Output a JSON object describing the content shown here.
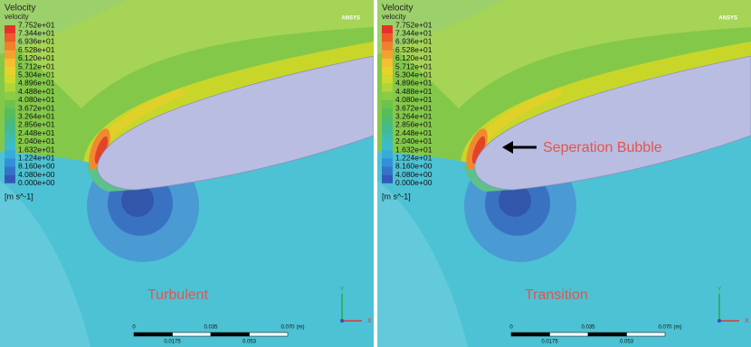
{
  "panels": [
    {
      "legend": {
        "title": "Velocity",
        "subtitle": "velocity",
        "levels": [
          "7.752e+01",
          "7.344e+01",
          "6.936e+01",
          "6.528e+01",
          "6.120e+01",
          "5.712e+01",
          "5.304e+01",
          "4.896e+01",
          "4.488e+01",
          "4.080e+01",
          "3.672e+01",
          "3.264e+01",
          "2.856e+01",
          "2.448e+01",
          "2.040e+01",
          "1.632e+01",
          "1.224e+01",
          "8.160e+00",
          "4.080e+00",
          "0.000e+00"
        ],
        "unit": "[m s^-1]"
      },
      "logo": "ANSYS",
      "label": "Turbulent",
      "scale": {
        "top": [
          "0",
          "0.035",
          "0.070",
          "(m)"
        ],
        "bottom": [
          "0.0175",
          "0.053"
        ]
      },
      "triad": {
        "y": "Y",
        "x": "X"
      }
    },
    {
      "legend": {
        "title": "Velocity",
        "subtitle": "velocity",
        "levels": [
          "7.752e+01",
          "7.344e+01",
          "6.936e+01",
          "6.528e+01",
          "6.120e+01",
          "5.712e+01",
          "5.304e+01",
          "4.896e+01",
          "4.488e+01",
          "4.080e+01",
          "3.672e+01",
          "3.264e+01",
          "2.856e+01",
          "2.448e+01",
          "2.040e+01",
          "1.632e+01",
          "1.224e+01",
          "8.160e+00",
          "4.080e+00",
          "0.000e+00"
        ],
        "unit": "[m s^-1]"
      },
      "logo": "ANSYS",
      "label": "Transition",
      "annotation": "Seperation Bubble",
      "scale": {
        "top": [
          "0",
          "0.035",
          "0.070",
          "(m)"
        ],
        "bottom": [
          "0.0175",
          "0.053"
        ]
      },
      "triad": {
        "y": "Y",
        "x": "X"
      }
    }
  ]
}
